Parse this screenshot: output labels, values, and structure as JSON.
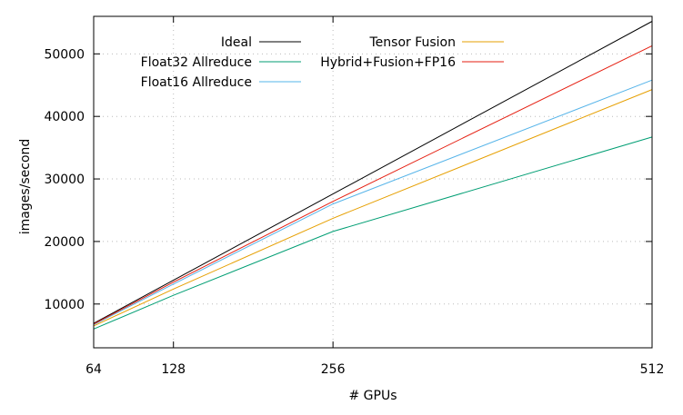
{
  "chart_data": {
    "type": "line",
    "title": "",
    "xlabel": "# GPUs",
    "ylabel": "images/second",
    "x": [
      64,
      128,
      256,
      512
    ],
    "xlim": [
      64,
      512
    ],
    "ylim": [
      3000,
      56000
    ],
    "xticks": [
      "64",
      "128",
      "256",
      "512"
    ],
    "yticks": [
      "10000",
      "20000",
      "30000",
      "40000",
      "50000"
    ],
    "grid": true,
    "legend_position": "top-left, two columns",
    "series": [
      {
        "name": "Ideal",
        "color": "#000000",
        "values": [
          6900,
          13800,
          27600,
          55200
        ]
      },
      {
        "name": "Float32 Allreduce",
        "color": "#009e73",
        "values": [
          6000,
          11400,
          21600,
          36700
        ]
      },
      {
        "name": "Float16 Allreduce",
        "color": "#56b4e9",
        "values": [
          6700,
          13200,
          26000,
          45800
        ]
      },
      {
        "name": "Tensor Fusion",
        "color": "#e69f00",
        "values": [
          6500,
          12400,
          23700,
          44300
        ]
      },
      {
        "name": "Hybrid+Fusion+FP16",
        "color": "#e51e10",
        "values": [
          6800,
          13500,
          26400,
          51300
        ]
      }
    ]
  }
}
